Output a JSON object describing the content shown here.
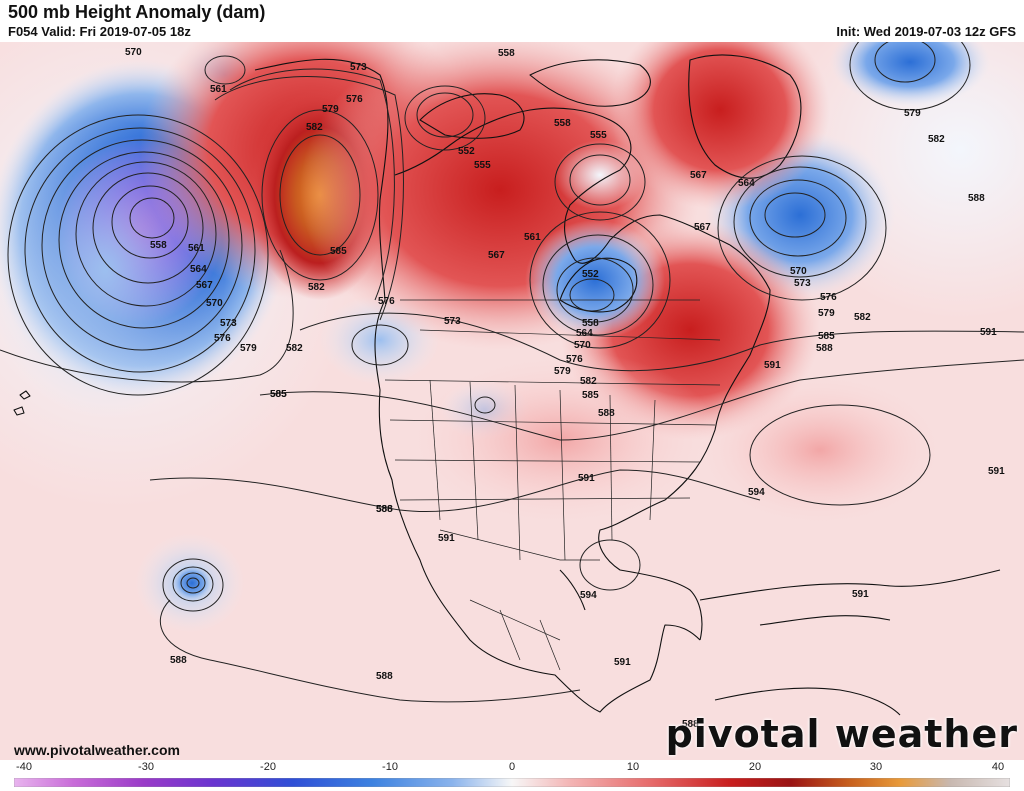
{
  "header": {
    "title": "500 mb Height Anomaly (dam)",
    "valid": "F054 Valid: Fri 2019-07-05 18z",
    "init": "Init: Wed 2019-07-03 12z GFS"
  },
  "footer": {
    "url": "www.pivotalweather.com",
    "brand": "pivotal weather"
  },
  "colorbar": {
    "ticks": [
      "-40",
      "-30",
      "-20",
      "-10",
      "0",
      "10",
      "20",
      "30",
      "40"
    ]
  },
  "contour_labels": {
    "l570a": "570",
    "l561a": "561",
    "l558a": "558",
    "l561b": "561",
    "l564a": "564",
    "l567a": "567",
    "l570b": "570",
    "l573a": "573",
    "l576a": "576",
    "l579a": "579",
    "l582a": "582",
    "l585a": "585",
    "l588a": "588",
    "l573b": "573",
    "l576b": "576",
    "l579b": "579",
    "l582b": "582",
    "l585b": "585",
    "l582c": "582",
    "l576c": "576",
    "l573c": "573",
    "l567b": "567",
    "l561c": "561",
    "l552a": "552",
    "l555a": "555",
    "l558b": "558",
    "l558c": "558",
    "l555b": "555",
    "l552b": "552",
    "l558d": "558",
    "l564b": "564",
    "l570c": "570",
    "l576d": "576",
    "l579c": "579",
    "l582d": "582",
    "l585c": "585",
    "l588b": "588",
    "l591a": "591",
    "l567c": "567",
    "l564c": "564",
    "l567d": "567",
    "l570d": "570",
    "l573d": "573",
    "l576e": "576",
    "l579d": "579",
    "l582e": "582",
    "l585d": "585",
    "l588c": "588",
    "l579e": "579",
    "l582f": "582",
    "l588d": "588",
    "l591b": "591",
    "l594a": "594",
    "l591c": "591",
    "l591d": "591",
    "l588e": "588",
    "l591e": "591",
    "l594b": "594",
    "l591f": "591",
    "l588f": "588",
    "l588g": "588",
    "l588h": "588",
    "l591g": "591",
    "l585e": "585"
  }
}
